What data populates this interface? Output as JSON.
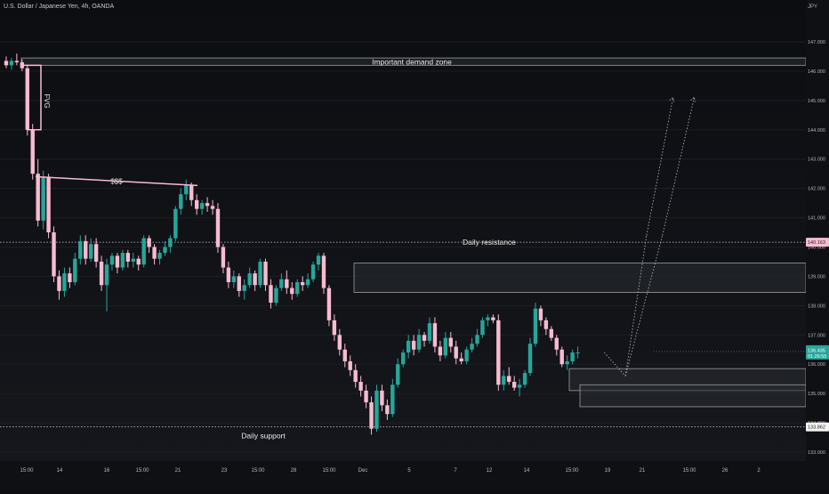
{
  "header": {
    "symbol_title": "U.S. Dollar / Japanese Yen, 4h, OANDA",
    "currency": "JPY"
  },
  "annotations": {
    "demand_zone_label": "Important demand zone",
    "fvg_label": "FVG",
    "sss_label": "$$$",
    "daily_resistance_label": "Daily resistance",
    "daily_support_label": "Daily support"
  },
  "price_axis": {
    "ticks": [
      "147.000",
      "146.000",
      "145.000",
      "144.000",
      "143.000",
      "142.000",
      "141.000",
      "140.000",
      "139.000",
      "138.000",
      "137.000",
      "136.000",
      "135.000",
      "134.000",
      "133.000"
    ],
    "resistance_badge": "140.163",
    "current_price_badge": "136.435",
    "current_countdown_badge": "01:26:55",
    "support_badge": "133.862"
  },
  "time_axis": {
    "labels": [
      "15:00",
      "14",
      "16",
      "15:00",
      "21",
      "23",
      "15:00",
      "28",
      "15:00",
      "Dec",
      "5",
      "7",
      "12",
      "14",
      "15:00",
      "19",
      "21",
      "15:00",
      "26",
      "2"
    ]
  },
  "colors": {
    "bull": "#26a69a",
    "bear": "#f8bbd0",
    "zone_fill": "#2a2d33",
    "zone_border": "#9e9e9e",
    "resistance_badge_bg": "#f8bbd0",
    "price_badge_bg": "#26a69a",
    "support_badge_bg": "#f5f5f5"
  },
  "chart_data": {
    "type": "candlestick",
    "ylim": [
      132.6,
      147.6
    ],
    "levels": {
      "daily_resistance": 140.163,
      "daily_support": 133.862
    },
    "zones": [
      {
        "name": "Important demand zone",
        "from": 146.2,
        "to": 146.45
      },
      {
        "name": "upper box",
        "from": 138.45,
        "to": 139.45
      },
      {
        "name": "lower box",
        "from": 135.1,
        "to": 135.85
      },
      {
        "name": "inner box",
        "from": 134.55,
        "to": 135.3
      }
    ],
    "candles": [
      [
        146.35,
        146.5,
        146.1,
        146.2
      ],
      [
        146.2,
        146.45,
        146.05,
        146.35
      ],
      [
        146.35,
        146.6,
        146.2,
        146.3
      ],
      [
        146.3,
        146.4,
        146.0,
        146.1
      ],
      [
        146.1,
        146.2,
        143.8,
        144.0
      ],
      [
        144.0,
        144.2,
        142.3,
        142.5
      ],
      [
        142.5,
        143.0,
        140.7,
        140.9
      ],
      [
        140.9,
        142.6,
        140.6,
        142.4
      ],
      [
        142.4,
        142.5,
        140.3,
        140.5
      ],
      [
        140.5,
        140.7,
        138.8,
        139.0
      ],
      [
        139.0,
        139.2,
        138.2,
        138.5
      ],
      [
        138.5,
        139.3,
        138.3,
        139.1
      ],
      [
        139.1,
        139.3,
        138.6,
        138.8
      ],
      [
        138.8,
        139.8,
        138.7,
        139.6
      ],
      [
        139.6,
        140.4,
        139.4,
        140.2
      ],
      [
        140.2,
        140.4,
        139.4,
        139.6
      ],
      [
        139.6,
        140.3,
        139.5,
        140.1
      ],
      [
        140.1,
        140.3,
        139.3,
        139.5
      ],
      [
        139.5,
        139.7,
        138.5,
        138.7
      ],
      [
        138.7,
        139.6,
        137.8,
        139.4
      ],
      [
        139.4,
        139.8,
        139.2,
        139.7
      ],
      [
        139.7,
        139.8,
        139.1,
        139.3
      ],
      [
        139.3,
        139.9,
        139.2,
        139.8
      ],
      [
        139.8,
        139.9,
        139.3,
        139.5
      ],
      [
        139.5,
        139.8,
        139.3,
        139.6
      ],
      [
        139.6,
        139.7,
        139.2,
        139.4
      ],
      [
        139.4,
        140.4,
        139.3,
        140.3
      ],
      [
        140.3,
        140.4,
        139.8,
        140.0
      ],
      [
        140.0,
        140.1,
        139.4,
        139.6
      ],
      [
        139.6,
        139.9,
        139.4,
        139.8
      ],
      [
        139.8,
        140.2,
        139.7,
        140.0
      ],
      [
        140.0,
        140.4,
        139.8,
        140.3
      ],
      [
        140.3,
        141.4,
        140.2,
        141.3
      ],
      [
        141.3,
        142.0,
        141.1,
        141.8
      ],
      [
        141.8,
        142.3,
        141.6,
        142.1
      ],
      [
        142.1,
        142.2,
        141.4,
        141.6
      ],
      [
        141.6,
        141.8,
        141.1,
        141.3
      ],
      [
        141.3,
        141.6,
        141.1,
        141.5
      ],
      [
        141.5,
        141.7,
        141.2,
        141.4
      ],
      [
        141.4,
        141.6,
        141.1,
        141.3
      ],
      [
        141.3,
        141.5,
        139.8,
        140.0
      ],
      [
        140.0,
        140.1,
        139.1,
        139.3
      ],
      [
        139.3,
        139.5,
        138.6,
        138.8
      ],
      [
        138.8,
        139.2,
        138.6,
        139.0
      ],
      [
        139.0,
        139.1,
        138.3,
        138.5
      ],
      [
        138.5,
        138.9,
        138.2,
        138.7
      ],
      [
        138.7,
        139.3,
        138.6,
        139.1
      ],
      [
        139.1,
        139.2,
        138.5,
        138.7
      ],
      [
        138.7,
        139.6,
        138.6,
        139.5
      ],
      [
        139.5,
        139.6,
        138.5,
        138.7
      ],
      [
        138.7,
        138.9,
        137.9,
        138.1
      ],
      [
        138.1,
        138.7,
        138.0,
        138.6
      ],
      [
        138.6,
        139.1,
        138.5,
        138.9
      ],
      [
        138.9,
        139.2,
        138.4,
        138.6
      ],
      [
        138.6,
        138.8,
        138.2,
        138.4
      ],
      [
        138.4,
        138.9,
        138.3,
        138.8
      ],
      [
        138.8,
        139.0,
        138.5,
        138.7
      ],
      [
        138.7,
        139.1,
        138.6,
        138.9
      ],
      [
        138.9,
        139.5,
        138.8,
        139.4
      ],
      [
        139.4,
        139.8,
        139.2,
        139.7
      ],
      [
        139.7,
        139.8,
        138.4,
        138.6
      ],
      [
        138.6,
        138.7,
        137.3,
        137.5
      ],
      [
        137.5,
        137.7,
        136.8,
        137.0
      ],
      [
        137.0,
        137.2,
        136.3,
        136.5
      ],
      [
        136.5,
        136.7,
        135.9,
        136.1
      ],
      [
        136.1,
        136.3,
        135.6,
        135.8
      ],
      [
        135.8,
        136.0,
        135.2,
        135.4
      ],
      [
        135.4,
        135.6,
        134.9,
        135.1
      ],
      [
        135.1,
        135.3,
        134.5,
        134.7
      ],
      [
        134.7,
        134.9,
        133.6,
        133.8
      ],
      [
        133.8,
        135.3,
        133.7,
        135.1
      ],
      [
        135.1,
        135.3,
        134.4,
        134.6
      ],
      [
        134.6,
        134.8,
        134.1,
        134.3
      ],
      [
        134.3,
        135.5,
        134.2,
        135.3
      ],
      [
        135.3,
        136.2,
        135.2,
        136.0
      ],
      [
        136.0,
        136.5,
        135.9,
        136.4
      ],
      [
        136.4,
        137.0,
        136.2,
        136.8
      ],
      [
        136.8,
        137.0,
        136.3,
        136.5
      ],
      [
        136.5,
        137.2,
        136.4,
        137.0
      ],
      [
        137.0,
        137.1,
        136.6,
        136.8
      ],
      [
        136.8,
        137.6,
        136.7,
        137.4
      ],
      [
        137.4,
        137.6,
        136.4,
        136.6
      ],
      [
        136.6,
        136.8,
        136.1,
        136.3
      ],
      [
        136.3,
        137.1,
        136.2,
        136.9
      ],
      [
        136.9,
        137.1,
        136.4,
        136.6
      ],
      [
        136.6,
        136.8,
        136.0,
        136.2
      ],
      [
        136.2,
        136.4,
        136.0,
        136.1
      ],
      [
        136.1,
        136.6,
        136.0,
        136.5
      ],
      [
        136.5,
        136.9,
        136.4,
        136.7
      ],
      [
        136.7,
        137.2,
        136.6,
        137.0
      ],
      [
        137.0,
        137.6,
        136.9,
        137.5
      ],
      [
        137.5,
        137.7,
        137.3,
        137.6
      ],
      [
        137.6,
        137.7,
        137.4,
        137.5
      ],
      [
        137.5,
        137.7,
        135.1,
        135.3
      ],
      [
        135.3,
        135.8,
        135.1,
        135.6
      ],
      [
        135.6,
        135.9,
        135.3,
        135.4
      ],
      [
        135.4,
        135.6,
        135.1,
        135.2
      ],
      [
        135.2,
        135.5,
        134.9,
        135.3
      ],
      [
        135.3,
        135.8,
        135.2,
        135.7
      ],
      [
        135.7,
        136.9,
        135.6,
        136.7
      ],
      [
        136.7,
        138.1,
        136.6,
        137.9
      ],
      [
        137.9,
        138.0,
        137.3,
        137.5
      ],
      [
        137.5,
        137.6,
        137.0,
        137.2
      ],
      [
        137.2,
        137.3,
        136.8,
        136.9
      ],
      [
        136.9,
        137.0,
        136.3,
        136.5
      ],
      [
        136.5,
        136.6,
        135.9,
        136.0
      ],
      [
        136.0,
        136.3,
        135.8,
        136.1
      ],
      [
        136.1,
        136.5,
        136.0,
        136.4
      ],
      [
        136.4,
        136.6,
        136.2,
        136.4
      ]
    ],
    "projection": [
      {
        "from_time": 113,
        "from_price": 136.4,
        "to_time": 117,
        "to_price": 135.6
      },
      {
        "from_time": 117,
        "from_price": 135.6,
        "to_time": 121,
        "to_price": 140.4
      },
      {
        "from_time": 121,
        "from_price": 140.4,
        "to_time": 126,
        "to_price": 145.1
      },
      {
        "from_time": 117,
        "from_price": 135.6,
        "to_time": 124,
        "to_price": 140.4
      },
      {
        "from_time": 124,
        "from_price": 140.4,
        "to_time": 130,
        "to_price": 145.1
      }
    ]
  }
}
